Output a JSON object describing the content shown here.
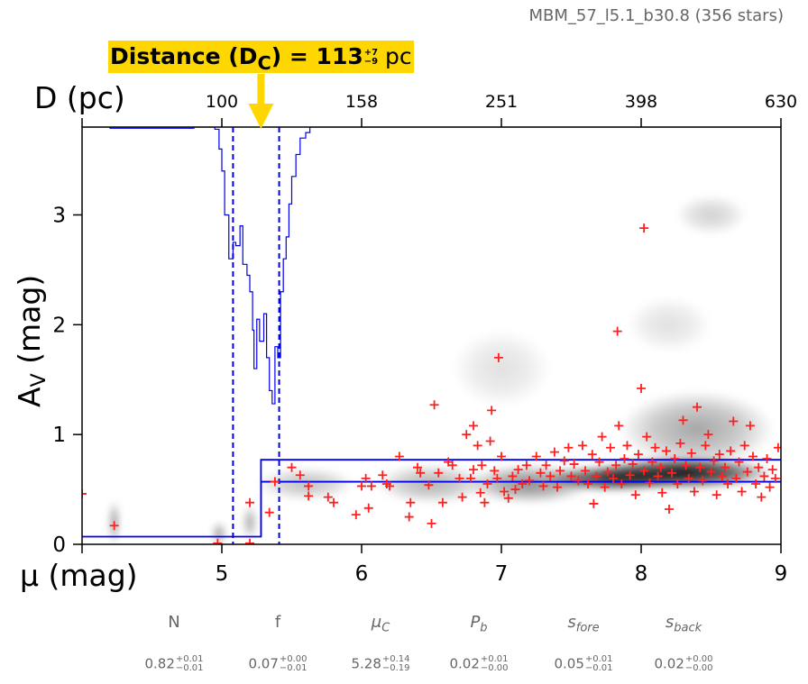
{
  "header": {
    "title": "MBM_57_l5.1_b30.8 (356 stars)"
  },
  "badge": {
    "label": "Distance (D",
    "sub": "C",
    "mid": ") = 113",
    "sup": "+7",
    "subv": "−9",
    "unit": " pc"
  },
  "params": [
    {
      "name": "N",
      "italic": false,
      "sub": "",
      "val": "0.82",
      "plus": "+0.01",
      "minus": "−0.01"
    },
    {
      "name": "f",
      "italic": false,
      "sub": "",
      "val": "0.07",
      "plus": "+0.00",
      "minus": "−0.01"
    },
    {
      "name": "μ",
      "italic": true,
      "sub": "C",
      "val": "5.28",
      "plus": "+0.14",
      "minus": "−0.19"
    },
    {
      "name": "P",
      "italic": true,
      "sub": "b",
      "val": "0.02",
      "plus": "+0.01",
      "minus": "−0.00"
    },
    {
      "name": "s",
      "italic": true,
      "sub": "fore",
      "val": "0.05",
      "plus": "+0.01",
      "minus": "−0.01"
    },
    {
      "name": "s",
      "italic": true,
      "sub": "back",
      "val": "0.02",
      "plus": "+0.00",
      "minus": "−0.00"
    }
  ],
  "chart_data": {
    "type": "scatter",
    "xlabel": "μ (mag)",
    "ylabel": "A",
    "ylabel_sub": "V",
    "ylabel_unit": " (mag)",
    "top_xlabel": "D (pc)",
    "xlim": [
      4,
      9
    ],
    "ylim": [
      0,
      3.8
    ],
    "xticks": [
      4,
      5,
      6,
      7,
      8,
      9
    ],
    "xtick_labels": [
      "",
      "5",
      "6",
      "7",
      "8",
      "9"
    ],
    "yticks": [
      0,
      1,
      2,
      3
    ],
    "ytick_labels": [
      "0",
      "1",
      "2",
      "3"
    ],
    "top_ticks_mu": [
      4,
      5,
      6,
      7,
      8,
      9
    ],
    "top_tick_labels": [
      "",
      "100",
      "158",
      "251",
      "398",
      "630"
    ],
    "colors": {
      "stars": "#ff2020",
      "model": "#0000ee",
      "badge": "#ffd700",
      "arrow": "#ffd700"
    },
    "distance_mu": 5.28,
    "dashed_mu": [
      5.08,
      5.41
    ],
    "model_lines": [
      {
        "x": [
          4,
          5.28,
          5.28,
          9
        ],
        "y": [
          0.07,
          0.07,
          0.57,
          0.57
        ]
      },
      {
        "x": [
          5.28,
          5.28,
          9
        ],
        "y": [
          0.07,
          0.77,
          0.77
        ]
      }
    ],
    "posterior_trace": {
      "x": [
        4.0,
        4.2,
        4.5,
        4.8,
        4.95,
        4.98,
        5.0,
        5.02,
        5.05,
        5.08,
        5.1,
        5.13,
        5.15,
        5.18,
        5.2,
        5.22,
        5.23,
        5.25,
        5.27,
        5.3,
        5.32,
        5.34,
        5.36,
        5.38,
        5.4,
        5.42,
        5.44,
        5.46,
        5.48,
        5.5,
        5.53,
        5.56,
        5.6,
        5.63,
        5.65
      ],
      "y": [
        3.8,
        3.79,
        3.79,
        3.8,
        3.78,
        3.6,
        3.4,
        3.0,
        2.6,
        2.75,
        2.72,
        2.9,
        2.55,
        2.45,
        2.3,
        1.95,
        1.6,
        2.05,
        1.85,
        2.1,
        1.7,
        1.4,
        1.28,
        1.8,
        1.7,
        2.3,
        2.6,
        2.8,
        3.1,
        3.35,
        3.55,
        3.7,
        3.75,
        3.8,
        3.8
      ]
    },
    "density_blobs": [
      {
        "x": 8.3,
        "y": 0.65,
        "sx": 0.65,
        "sy": 0.15,
        "a": 0.95
      },
      {
        "x": 7.8,
        "y": 0.6,
        "sx": 0.5,
        "sy": 0.12,
        "a": 0.85
      },
      {
        "x": 8.4,
        "y": 1.05,
        "sx": 0.55,
        "sy": 0.35,
        "a": 0.35
      },
      {
        "x": 7.2,
        "y": 0.55,
        "sx": 0.45,
        "sy": 0.18,
        "a": 0.45
      },
      {
        "x": 6.5,
        "y": 0.55,
        "sx": 0.4,
        "sy": 0.18,
        "a": 0.3
      },
      {
        "x": 5.6,
        "y": 0.55,
        "sx": 0.35,
        "sy": 0.15,
        "a": 0.25
      },
      {
        "x": 8.5,
        "y": 3.0,
        "sx": 0.25,
        "sy": 0.18,
        "a": 0.18
      },
      {
        "x": 8.2,
        "y": 2.0,
        "sx": 0.3,
        "sy": 0.25,
        "a": 0.12
      },
      {
        "x": 7.0,
        "y": 1.6,
        "sx": 0.35,
        "sy": 0.35,
        "a": 0.12
      },
      {
        "x": 4.23,
        "y": 0.2,
        "sx": 0.04,
        "sy": 0.2,
        "a": 0.4
      },
      {
        "x": 4.98,
        "y": 0.1,
        "sx": 0.05,
        "sy": 0.1,
        "a": 0.4
      },
      {
        "x": 5.2,
        "y": 0.2,
        "sx": 0.05,
        "sy": 0.15,
        "a": 0.35
      }
    ],
    "points": [
      [
        4.0,
        0.46
      ],
      [
        4.23,
        0.17
      ],
      [
        4.97,
        0.01
      ],
      [
        5.2,
        0.01
      ],
      [
        5.2,
        0.38
      ],
      [
        5.34,
        0.29
      ],
      [
        5.38,
        0.57
      ],
      [
        5.5,
        0.7
      ],
      [
        5.56,
        0.63
      ],
      [
        5.62,
        0.44
      ],
      [
        5.62,
        0.53
      ],
      [
        5.76,
        0.43
      ],
      [
        5.8,
        0.38
      ],
      [
        5.96,
        0.27
      ],
      [
        6.0,
        0.53
      ],
      [
        6.03,
        0.6
      ],
      [
        6.05,
        0.33
      ],
      [
        6.07,
        0.53
      ],
      [
        6.15,
        0.63
      ],
      [
        6.18,
        0.55
      ],
      [
        6.2,
        0.53
      ],
      [
        6.27,
        0.8
      ],
      [
        6.34,
        0.25
      ],
      [
        6.35,
        0.38
      ],
      [
        6.4,
        0.7
      ],
      [
        6.42,
        0.65
      ],
      [
        6.48,
        0.54
      ],
      [
        6.5,
        0.19
      ],
      [
        6.52,
        1.27
      ],
      [
        6.55,
        0.65
      ],
      [
        6.58,
        0.38
      ],
      [
        6.62,
        0.75
      ],
      [
        6.65,
        0.72
      ],
      [
        6.7,
        0.6
      ],
      [
        6.72,
        0.43
      ],
      [
        6.75,
        1.0
      ],
      [
        6.78,
        0.6
      ],
      [
        6.8,
        0.68
      ],
      [
        6.8,
        1.08
      ],
      [
        6.83,
        0.9
      ],
      [
        6.85,
        0.47
      ],
      [
        6.86,
        0.72
      ],
      [
        6.88,
        0.38
      ],
      [
        6.9,
        0.55
      ],
      [
        6.92,
        0.94
      ],
      [
        6.93,
        1.22
      ],
      [
        6.95,
        0.67
      ],
      [
        6.97,
        0.6
      ],
      [
        6.98,
        1.7
      ],
      [
        7.0,
        0.8
      ],
      [
        7.02,
        0.48
      ],
      [
        7.05,
        0.42
      ],
      [
        7.08,
        0.62
      ],
      [
        7.1,
        0.5
      ],
      [
        7.12,
        0.68
      ],
      [
        7.15,
        0.55
      ],
      [
        7.18,
        0.72
      ],
      [
        7.2,
        0.58
      ],
      [
        7.25,
        0.8
      ],
      [
        7.28,
        0.65
      ],
      [
        7.3,
        0.53
      ],
      [
        7.32,
        0.72
      ],
      [
        7.35,
        0.62
      ],
      [
        7.38,
        0.84
      ],
      [
        7.4,
        0.52
      ],
      [
        7.42,
        0.67
      ],
      [
        7.45,
        0.76
      ],
      [
        7.48,
        0.88
      ],
      [
        7.5,
        0.62
      ],
      [
        7.52,
        0.73
      ],
      [
        7.55,
        0.58
      ],
      [
        7.58,
        0.9
      ],
      [
        7.6,
        0.67
      ],
      [
        7.62,
        0.55
      ],
      [
        7.65,
        0.82
      ],
      [
        7.66,
        0.37
      ],
      [
        7.68,
        0.62
      ],
      [
        7.7,
        0.75
      ],
      [
        7.72,
        0.98
      ],
      [
        7.74,
        0.52
      ],
      [
        7.76,
        0.66
      ],
      [
        7.78,
        0.88
      ],
      [
        7.8,
        0.6
      ],
      [
        7.82,
        0.72
      ],
      [
        7.83,
        1.94
      ],
      [
        7.84,
        1.08
      ],
      [
        7.86,
        0.55
      ],
      [
        7.88,
        0.78
      ],
      [
        7.9,
        0.9
      ],
      [
        7.92,
        0.63
      ],
      [
        7.94,
        0.73
      ],
      [
        7.96,
        0.45
      ],
      [
        7.98,
        0.82
      ],
      [
        8.0,
        1.42
      ],
      [
        8.02,
        2.88
      ],
      [
        8.02,
        0.67
      ],
      [
        8.04,
        0.98
      ],
      [
        8.06,
        0.56
      ],
      [
        8.08,
        0.75
      ],
      [
        8.1,
        0.88
      ],
      [
        8.12,
        0.62
      ],
      [
        8.14,
        0.7
      ],
      [
        8.15,
        0.47
      ],
      [
        8.18,
        0.85
      ],
      [
        8.2,
        0.32
      ],
      [
        8.22,
        0.65
      ],
      [
        8.24,
        0.78
      ],
      [
        8.26,
        0.55
      ],
      [
        8.28,
        0.92
      ],
      [
        8.3,
        1.13
      ],
      [
        8.32,
        0.72
      ],
      [
        8.34,
        0.6
      ],
      [
        8.36,
        0.83
      ],
      [
        8.38,
        0.48
      ],
      [
        8.4,
        1.25
      ],
      [
        8.42,
        0.7
      ],
      [
        8.44,
        0.58
      ],
      [
        8.46,
        0.9
      ],
      [
        8.48,
        1.0
      ],
      [
        8.5,
        0.66
      ],
      [
        8.52,
        0.76
      ],
      [
        8.54,
        0.45
      ],
      [
        8.56,
        0.82
      ],
      [
        8.58,
        0.62
      ],
      [
        8.6,
        0.7
      ],
      [
        8.62,
        0.55
      ],
      [
        8.64,
        0.85
      ],
      [
        8.66,
        1.12
      ],
      [
        8.68,
        0.6
      ],
      [
        8.7,
        0.75
      ],
      [
        8.72,
        0.48
      ],
      [
        8.74,
        0.9
      ],
      [
        8.76,
        0.66
      ],
      [
        8.78,
        1.08
      ],
      [
        8.8,
        0.8
      ],
      [
        8.82,
        0.55
      ],
      [
        8.84,
        0.7
      ],
      [
        8.86,
        0.43
      ],
      [
        8.88,
        0.62
      ],
      [
        8.9,
        0.78
      ],
      [
        8.92,
        0.52
      ],
      [
        8.94,
        0.68
      ],
      [
        8.96,
        0.6
      ],
      [
        8.98,
        0.88
      ]
    ]
  }
}
